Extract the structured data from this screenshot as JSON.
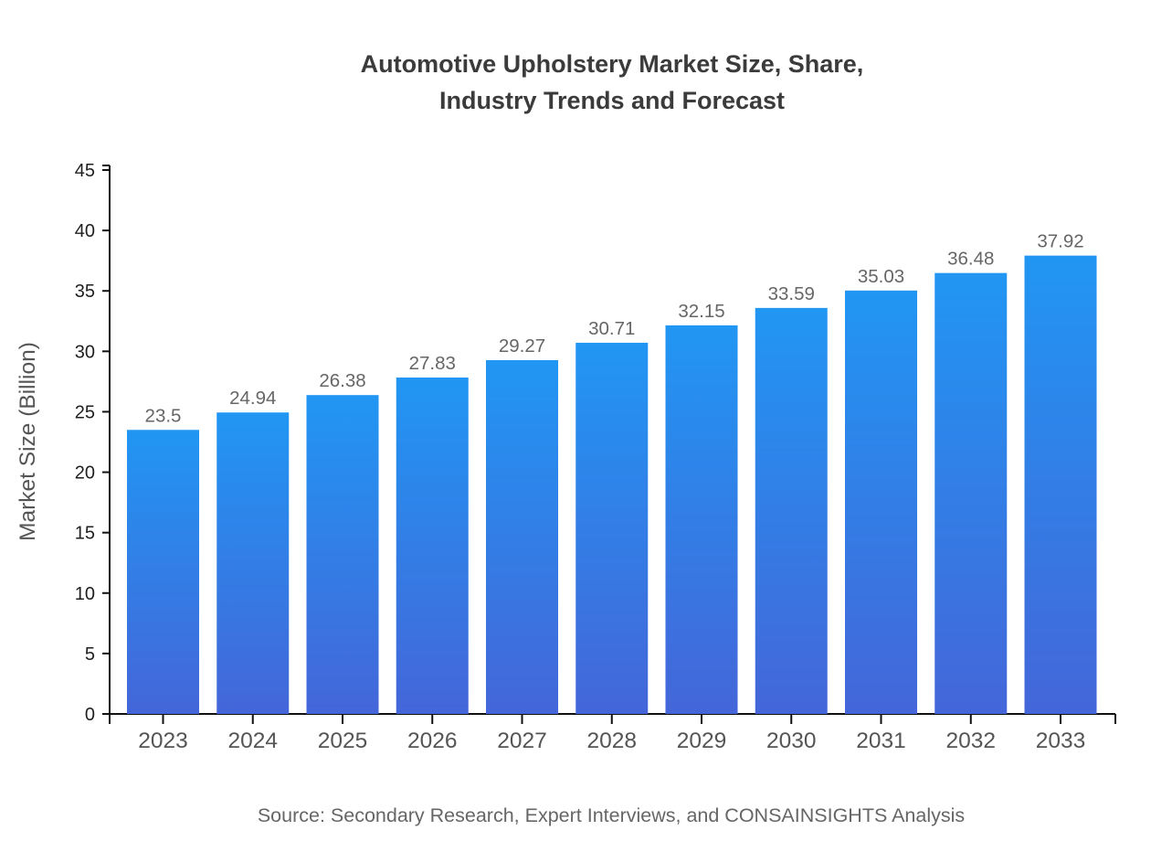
{
  "header": {
    "title_line1": "Automotive Upholstery Market Size, Share,",
    "title_line2": "Industry Trends and Forecast"
  },
  "footer": {
    "source": "Source: Secondary Research, Expert Interviews, and CONSAINSIGHTS Analysis"
  },
  "chart_data": {
    "type": "bar",
    "title": "Automotive Upholstery Market Size, Share, Industry Trends and Forecast",
    "categories": [
      "2023",
      "2024",
      "2025",
      "2026",
      "2027",
      "2028",
      "2029",
      "2030",
      "2031",
      "2032",
      "2033"
    ],
    "values": [
      23.5,
      24.94,
      26.38,
      27.83,
      29.27,
      30.71,
      32.15,
      33.59,
      35.03,
      36.48,
      37.92
    ],
    "value_labels": [
      "23.5",
      "24.94",
      "26.38",
      "27.83",
      "29.27",
      "30.71",
      "32.15",
      "33.59",
      "35.03",
      "36.48",
      "37.92"
    ],
    "xlabel": "",
    "ylabel": "Market Size (Billion)",
    "ylim": [
      0,
      45
    ],
    "yticks": [
      0,
      5,
      10,
      15,
      20,
      25,
      30,
      35,
      40,
      45
    ],
    "grid": false,
    "legend": "none",
    "bar_gradient": {
      "top": "#2196F3",
      "bottom": "#4466D9"
    }
  },
  "colors": {
    "title": "#3b3b3b",
    "axis": "#111111",
    "y_tick_label": "#1f1f1f",
    "x_tick_label": "#555555",
    "value_label": "#666666",
    "y_axis_title": "#555555",
    "source": "#666666",
    "background": "#ffffff"
  }
}
